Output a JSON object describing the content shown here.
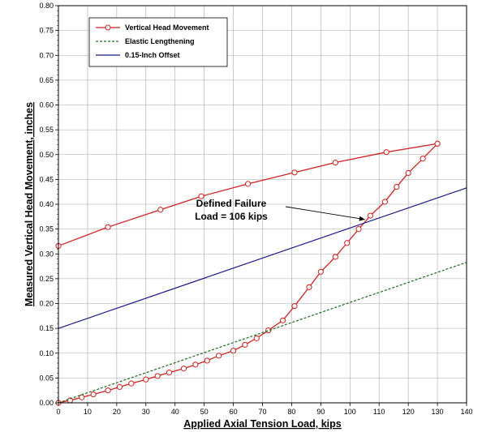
{
  "chart_data": {
    "type": "line",
    "title": "",
    "xlabel": "Applied Axial Tension Load, kips",
    "ylabel": "Measured Vertical Head Movement, inches",
    "xlim": [
      0,
      140
    ],
    "ylim": [
      0,
      0.8
    ],
    "x_ticks": [
      "0",
      "10",
      "20",
      "30",
      "40",
      "50",
      "60",
      "70",
      "80",
      "90",
      "100",
      "110",
      "120",
      "130",
      "140"
    ],
    "y_ticks": [
      "0.00",
      "0.05",
      "0.10",
      "0.15",
      "0.20",
      "0.25",
      "0.30",
      "0.35",
      "0.40",
      "0.45",
      "0.50",
      "0.55",
      "0.60",
      "0.65",
      "0.70",
      "0.75",
      "0.80"
    ],
    "grid": true,
    "legend_position": "top-left",
    "series": [
      {
        "name": "Vertical Head Movement",
        "color": "#d42020",
        "marker": "circle",
        "loading": {
          "x": [
            0,
            4,
            8,
            12,
            17,
            21,
            25,
            30,
            34,
            38,
            43,
            47,
            51,
            55,
            60,
            64,
            68,
            72,
            77,
            81,
            86,
            90,
            95,
            99,
            103,
            107,
            112,
            116,
            120,
            125,
            130
          ],
          "y": [
            0.0,
            0.005,
            0.011,
            0.017,
            0.025,
            0.032,
            0.039,
            0.047,
            0.054,
            0.061,
            0.069,
            0.077,
            0.085,
            0.095,
            0.105,
            0.117,
            0.13,
            0.146,
            0.166,
            0.195,
            0.233,
            0.264,
            0.294,
            0.322,
            0.35,
            0.377,
            0.405,
            0.435,
            0.463,
            0.492,
            0.522
          ]
        },
        "unloading": {
          "x": [
            130,
            112.5,
            95,
            81,
            65,
            49,
            35,
            17,
            0
          ],
          "y": [
            0.522,
            0.505,
            0.484,
            0.464,
            0.441,
            0.416,
            0.389,
            0.354,
            0.316
          ]
        }
      },
      {
        "name": "Elastic Lengthening",
        "color": "#1c6b1c",
        "style": "dashed",
        "x": [
          0,
          140
        ],
        "y": [
          0.0,
          0.283
        ]
      },
      {
        "name": "0.15-Inch Offset",
        "color": "#1a1a8c",
        "style": "solid",
        "x": [
          0,
          140
        ],
        "y": [
          0.15,
          0.433
        ]
      }
    ],
    "annotations": [
      {
        "text_lines": [
          "Defined Failure",
          "Load = 106 kips"
        ],
        "x": 106,
        "y": 0.366
      }
    ]
  }
}
